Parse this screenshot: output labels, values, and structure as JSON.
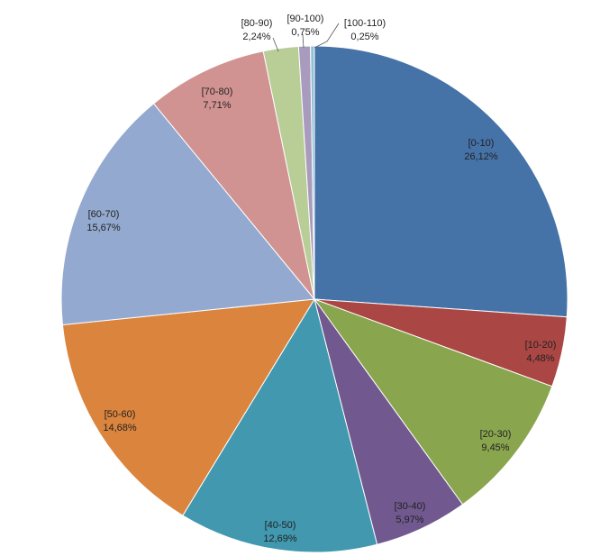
{
  "chart_data": {
    "type": "pie",
    "title": "",
    "start_angle_deg": 0,
    "direction": "clockwise",
    "slices": [
      {
        "category": "[0-10)",
        "value": 26.12,
        "label": "26,12%",
        "color": "#4572A7"
      },
      {
        "category": "[10-20)",
        "value": 4.48,
        "label": "4,48%",
        "color": "#AA4643"
      },
      {
        "category": "[20-30)",
        "value": 9.45,
        "label": "9,45%",
        "color": "#89A54E"
      },
      {
        "category": "[30-40)",
        "value": 5.97,
        "label": "5,97%",
        "color": "#71588F"
      },
      {
        "category": "[40-50)",
        "value": 12.69,
        "label": "12,69%",
        "color": "#4198AF"
      },
      {
        "category": "[50-60)",
        "value": 14.68,
        "label": "14,68%",
        "color": "#DB843D"
      },
      {
        "category": "[60-70)",
        "value": 15.67,
        "label": "15,67%",
        "color": "#93A9CF"
      },
      {
        "category": "[70-80)",
        "value": 7.71,
        "label": "7,71%",
        "color": "#D19392"
      },
      {
        "category": "[80-90)",
        "value": 2.24,
        "label": "2,24%",
        "color": "#B9CD96"
      },
      {
        "category": "[90-100)",
        "value": 0.75,
        "label": "0,75%",
        "color": "#A99BBD"
      },
      {
        "category": "[100-110)",
        "value": 0.25,
        "label": "0,25%",
        "color": "#91C3D5"
      }
    ]
  }
}
